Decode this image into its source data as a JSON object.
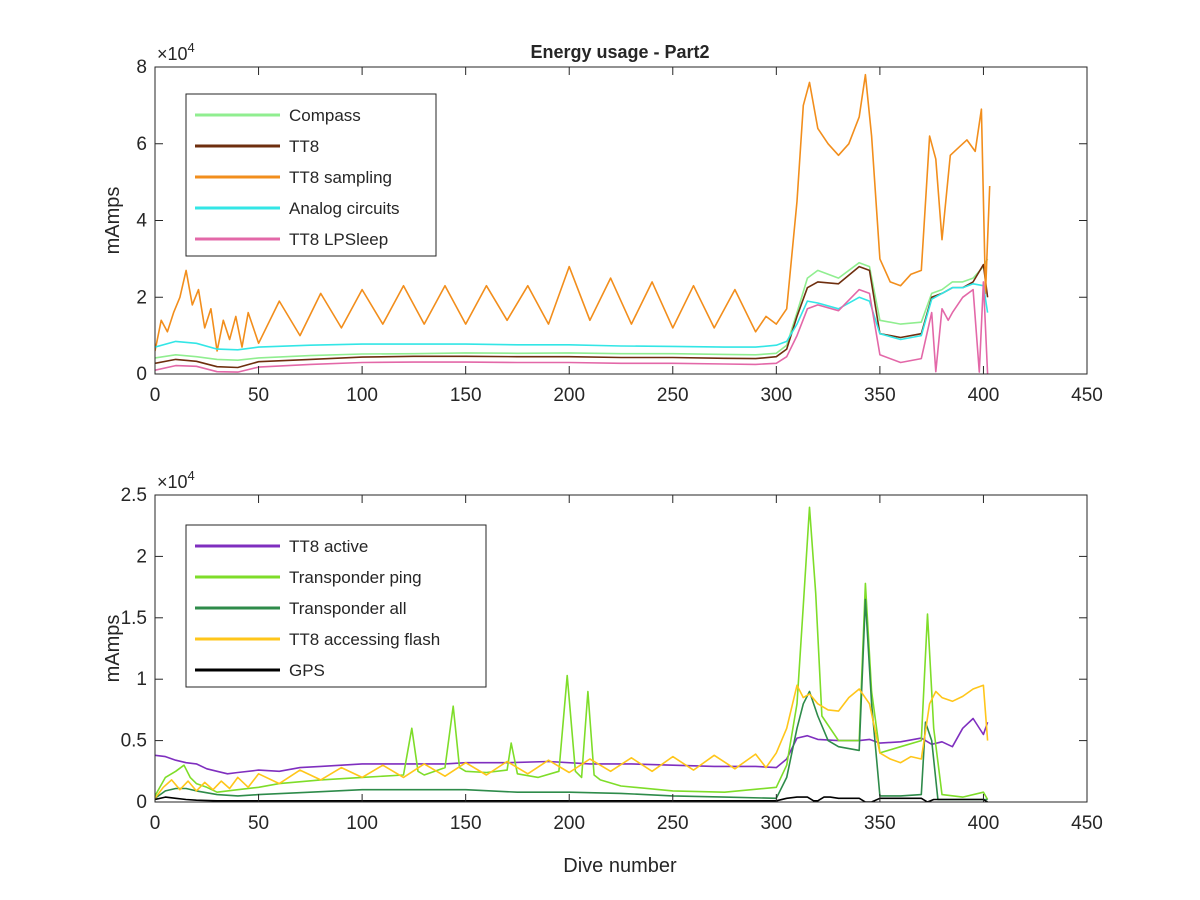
{
  "figure": {
    "title": "Energy usage - Part2",
    "xlabel": "Dive number"
  },
  "chart_data": [
    {
      "type": "line",
      "title": "Energy usage - Part2",
      "xlabel": "",
      "ylabel": "mAmps",
      "exponent": "4",
      "xlim": [
        0,
        450
      ],
      "ylim": [
        0,
        80000
      ],
      "xticks": [
        0,
        50,
        100,
        150,
        200,
        250,
        300,
        350,
        400,
        450
      ],
      "yticks": [
        0,
        20000,
        40000,
        60000,
        80000
      ],
      "ytick_labels": [
        "0",
        "2",
        "4",
        "6",
        "8"
      ],
      "legend": "top-left",
      "series": [
        {
          "name": "Compass",
          "color": "#90ee90",
          "x": [
            0,
            10,
            20,
            30,
            40,
            50,
            75,
            100,
            125,
            150,
            175,
            200,
            225,
            250,
            275,
            290,
            300,
            305,
            310,
            315,
            320,
            330,
            340,
            345,
            350,
            360,
            370,
            375,
            380,
            385,
            390,
            395,
            400,
            402
          ],
          "y": [
            4200,
            5000,
            4500,
            3800,
            3600,
            4200,
            4800,
            5200,
            5300,
            5500,
            5400,
            5500,
            5300,
            5300,
            5100,
            5000,
            5400,
            7500,
            16000,
            25000,
            27000,
            25000,
            29000,
            28000,
            14000,
            13000,
            13500,
            21000,
            22000,
            24000,
            24000,
            25000,
            28000,
            30000
          ]
        },
        {
          "name": "TT8",
          "color": "#6e2e0e",
          "x": [
            0,
            10,
            20,
            30,
            40,
            50,
            75,
            100,
            125,
            150,
            175,
            200,
            225,
            250,
            275,
            290,
            300,
            305,
            310,
            315,
            320,
            330,
            340,
            345,
            350,
            360,
            370,
            375,
            380,
            385,
            390,
            395,
            400,
            402
          ],
          "y": [
            2800,
            3800,
            3300,
            1900,
            1700,
            3200,
            3800,
            4400,
            4600,
            4600,
            4500,
            4500,
            4300,
            4300,
            4100,
            4000,
            4500,
            6500,
            15000,
            22500,
            24000,
            23500,
            28000,
            27000,
            10500,
            9500,
            10500,
            20000,
            21000,
            22500,
            22500,
            24000,
            28500,
            20000
          ]
        },
        {
          "name": "TT8 sampling",
          "color": "#f28e1c",
          "x": [
            0,
            3,
            6,
            9,
            12,
            15,
            18,
            21,
            24,
            27,
            30,
            33,
            36,
            39,
            42,
            45,
            50,
            60,
            70,
            80,
            90,
            100,
            110,
            120,
            130,
            140,
            150,
            160,
            170,
            180,
            190,
            200,
            210,
            220,
            230,
            240,
            250,
            260,
            270,
            280,
            290,
            295,
            300,
            305,
            310,
            313,
            316,
            320,
            325,
            330,
            335,
            340,
            343,
            346,
            350,
            355,
            360,
            365,
            370,
            374,
            377,
            380,
            384,
            388,
            392,
            396,
            399,
            401,
            403
          ],
          "y": [
            6000,
            14000,
            11000,
            16000,
            20000,
            27000,
            18000,
            22000,
            12000,
            17000,
            6000,
            14000,
            9000,
            15000,
            7000,
            16000,
            8000,
            19000,
            10000,
            21000,
            12000,
            22000,
            13000,
            23000,
            13000,
            23000,
            13000,
            23000,
            14000,
            23000,
            13000,
            28000,
            14000,
            25000,
            13000,
            24000,
            12000,
            23000,
            12000,
            22000,
            11000,
            15000,
            13000,
            17000,
            45000,
            70000,
            76000,
            64000,
            60000,
            57000,
            60000,
            67000,
            78000,
            62000,
            30000,
            24000,
            23000,
            26000,
            27000,
            62000,
            56000,
            35000,
            57000,
            59000,
            61000,
            58000,
            69000,
            21000,
            49000
          ]
        },
        {
          "name": "Analog circuits",
          "color": "#33e6e6",
          "x": [
            0,
            10,
            20,
            30,
            40,
            50,
            75,
            100,
            125,
            150,
            175,
            200,
            225,
            250,
            275,
            290,
            300,
            305,
            310,
            315,
            320,
            330,
            340,
            345,
            350,
            360,
            370,
            375,
            380,
            385,
            390,
            395,
            400,
            402
          ],
          "y": [
            7000,
            8500,
            8000,
            6500,
            6300,
            7000,
            7500,
            7800,
            7800,
            7800,
            7600,
            7600,
            7300,
            7200,
            7000,
            7000,
            7500,
            8500,
            13000,
            19000,
            18500,
            17000,
            20000,
            19000,
            10500,
            9000,
            10000,
            19500,
            21000,
            22500,
            22500,
            23500,
            23000,
            16000
          ]
        },
        {
          "name": "TT8 LPSleep",
          "color": "#e368a8",
          "x": [
            0,
            10,
            20,
            30,
            40,
            50,
            75,
            100,
            125,
            150,
            175,
            200,
            225,
            250,
            275,
            290,
            300,
            305,
            310,
            315,
            320,
            330,
            340,
            345,
            350,
            360,
            370,
            375,
            377,
            380,
            383,
            385,
            390,
            395,
            398,
            400,
            402
          ],
          "y": [
            1000,
            2200,
            2000,
            600,
            500,
            1800,
            2500,
            3000,
            3100,
            3100,
            3000,
            3000,
            2800,
            2800,
            2600,
            2500,
            2800,
            4500,
            10000,
            17000,
            18000,
            16500,
            22000,
            21000,
            5000,
            3000,
            4000,
            16000,
            600,
            17000,
            14000,
            16000,
            20000,
            22000,
            500,
            24000,
            0
          ]
        }
      ]
    },
    {
      "type": "line",
      "title": "",
      "xlabel": "Dive number",
      "ylabel": "mAmps",
      "exponent": "4",
      "xlim": [
        0,
        450
      ],
      "ylim": [
        0,
        25000
      ],
      "xticks": [
        0,
        50,
        100,
        150,
        200,
        250,
        300,
        350,
        400,
        450
      ],
      "yticks": [
        0,
        5000,
        10000,
        15000,
        20000,
        25000
      ],
      "ytick_labels": [
        "0",
        "0.5",
        "1",
        "1.5",
        "2",
        "2.5"
      ],
      "legend": "top-left",
      "series": [
        {
          "name": "TT8 active",
          "color": "#7f2fbf",
          "x": [
            0,
            5,
            10,
            15,
            20,
            25,
            30,
            35,
            40,
            50,
            60,
            70,
            80,
            90,
            100,
            110,
            120,
            130,
            140,
            150,
            170,
            190,
            210,
            230,
            250,
            270,
            290,
            300,
            305,
            310,
            315,
            320,
            330,
            340,
            345,
            350,
            360,
            370,
            375,
            380,
            385,
            390,
            395,
            400,
            402
          ],
          "y": [
            3800,
            3700,
            3400,
            3200,
            3100,
            2700,
            2500,
            2300,
            2400,
            2600,
            2500,
            2800,
            2900,
            3000,
            3100,
            3100,
            3100,
            3100,
            3100,
            3200,
            3200,
            3300,
            3100,
            3100,
            3000,
            2900,
            2900,
            2800,
            3500,
            5200,
            5400,
            5100,
            5000,
            5000,
            5100,
            4800,
            4900,
            5200,
            4700,
            4900,
            4500,
            6000,
            6800,
            5500,
            6500
          ]
        },
        {
          "name": "Transponder ping",
          "color": "#7edd29",
          "x": [
            0,
            5,
            10,
            14,
            17,
            20,
            25,
            30,
            40,
            50,
            60,
            80,
            100,
            120,
            124,
            127,
            130,
            140,
            144,
            147,
            150,
            160,
            170,
            172,
            175,
            185,
            195,
            199,
            203,
            206,
            209,
            212,
            215,
            225,
            250,
            275,
            300,
            305,
            310,
            313,
            316,
            319,
            322,
            330,
            340,
            343,
            346,
            350,
            360,
            370,
            373,
            376,
            380,
            390,
            400,
            402
          ],
          "y": [
            500,
            2000,
            2500,
            3000,
            2000,
            1500,
            1200,
            800,
            1000,
            1200,
            1500,
            1800,
            2000,
            2200,
            6000,
            2500,
            2200,
            2800,
            7800,
            2800,
            2500,
            2400,
            2600,
            4800,
            2300,
            2000,
            2500,
            10300,
            2500,
            2000,
            9000,
            2200,
            1800,
            1300,
            900,
            800,
            1200,
            3000,
            8000,
            16000,
            24000,
            17000,
            7000,
            5000,
            5000,
            17800,
            9000,
            4000,
            4500,
            5000,
            15300,
            6000,
            600,
            400,
            800,
            200
          ]
        },
        {
          "name": "Transponder all",
          "color": "#2e8b4a",
          "x": [
            0,
            5,
            10,
            15,
            20,
            30,
            40,
            50,
            75,
            100,
            125,
            150,
            175,
            200,
            225,
            250,
            275,
            300,
            305,
            310,
            313,
            316,
            320,
            325,
            330,
            340,
            343,
            346,
            350,
            360,
            370,
            372,
            375,
            378,
            385,
            395,
            400,
            402
          ],
          "y": [
            300,
            900,
            1100,
            1100,
            900,
            600,
            500,
            600,
            800,
            1000,
            1000,
            1000,
            800,
            800,
            700,
            500,
            400,
            300,
            2000,
            6000,
            8000,
            9000,
            7000,
            5000,
            4500,
            4200,
            16500,
            8000,
            500,
            500,
            600,
            6500,
            5000,
            200,
            200,
            200,
            200,
            200
          ]
        },
        {
          "name": "TT8 accessing flash",
          "color": "#ffc61a",
          "x": [
            0,
            4,
            8,
            12,
            16,
            20,
            24,
            28,
            32,
            36,
            40,
            45,
            50,
            60,
            70,
            80,
            90,
            100,
            110,
            120,
            130,
            140,
            150,
            160,
            170,
            180,
            190,
            200,
            210,
            220,
            230,
            240,
            250,
            260,
            270,
            280,
            290,
            295,
            300,
            305,
            310,
            313,
            316,
            320,
            325,
            330,
            335,
            340,
            345,
            350,
            355,
            360,
            365,
            370,
            374,
            377,
            380,
            385,
            390,
            395,
            400,
            402
          ],
          "y": [
            300,
            1200,
            1800,
            1000,
            1700,
            900,
            1600,
            1000,
            1700,
            1100,
            2000,
            1200,
            2300,
            1500,
            2600,
            1800,
            2800,
            2000,
            3000,
            2000,
            3100,
            2100,
            3200,
            2200,
            3300,
            2300,
            3400,
            2400,
            3500,
            2500,
            3600,
            2500,
            3700,
            2600,
            3800,
            2700,
            3900,
            2800,
            4000,
            6000,
            9500,
            8500,
            8800,
            8000,
            7500,
            7400,
            8500,
            9200,
            8000,
            4000,
            3500,
            3200,
            3700,
            3500,
            8000,
            9000,
            8500,
            8200,
            8600,
            9200,
            9500,
            5000
          ]
        },
        {
          "name": "GPS",
          "color": "#000000",
          "x": [
            0,
            5,
            10,
            15,
            20,
            30,
            40,
            60,
            80,
            100,
            120,
            140,
            160,
            180,
            200,
            220,
            240,
            260,
            280,
            300,
            305,
            310,
            315,
            318,
            320,
            323,
            326,
            330,
            340,
            343,
            346,
            350,
            370,
            373,
            376,
            380,
            400,
            402
          ],
          "y": [
            200,
            400,
            300,
            200,
            150,
            100,
            100,
            100,
            100,
            100,
            100,
            100,
            100,
            100,
            100,
            100,
            100,
            100,
            100,
            100,
            300,
            400,
            400,
            100,
            100,
            400,
            400,
            300,
            300,
            0,
            0,
            300,
            300,
            0,
            200,
            200,
            200,
            0
          ]
        }
      ]
    }
  ]
}
